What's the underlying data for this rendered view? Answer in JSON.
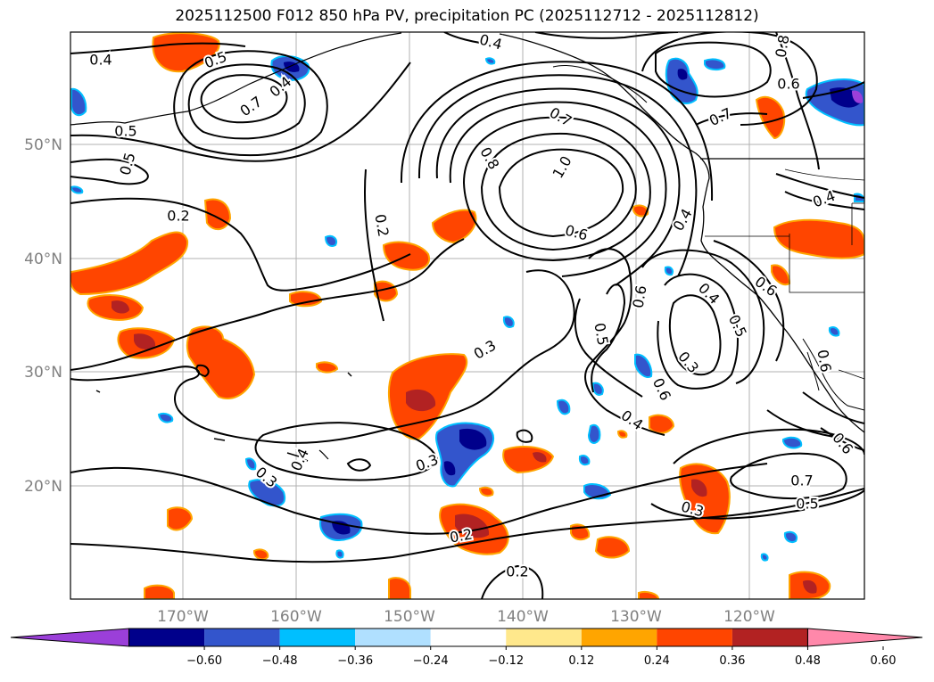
{
  "title": "2025112500 F012 850 hPa PV, precipitation PC (2025112712 - 2025112812)",
  "map": {
    "lat_ticks": [
      "50°N",
      "40°N",
      "30°N",
      "20°N"
    ],
    "lon_ticks": [
      "170°W",
      "160°W",
      "150°W",
      "140°W",
      "130°W",
      "120°W"
    ]
  },
  "contour_labels": [
    "0.4",
    "0.5",
    "0.7",
    "0.4",
    "0.5",
    "0.4",
    "0.7",
    "0.8",
    "0.6",
    "0.7",
    "0.8",
    "1.0",
    "0.6",
    "0.2",
    "0.2",
    "0.4",
    "0.6",
    "0.6",
    "0.4",
    "0.5",
    "0.3",
    "0.6",
    "0.5",
    "0.6",
    "0.4",
    "0.3",
    "0.3",
    "0.3",
    "0.6",
    "0.7",
    "0.5",
    "0.3",
    "0.2",
    "0.2",
    "0.4",
    "0.5",
    "0.4"
  ],
  "colorbar": {
    "colors": [
      "#9b3fd9",
      "#00008b",
      "#3355cc",
      "#00bfff",
      "#b0e0ff",
      "#ffffff",
      "#ffe88c",
      "#ffa500",
      "#ff4500",
      "#b22222",
      "#ff88aa"
    ],
    "ticks": [
      "−0.60",
      "−0.48",
      "−0.36",
      "−0.24",
      "−0.12",
      "0.12",
      "0.24",
      "0.36",
      "0.48",
      "0.60"
    ]
  }
}
